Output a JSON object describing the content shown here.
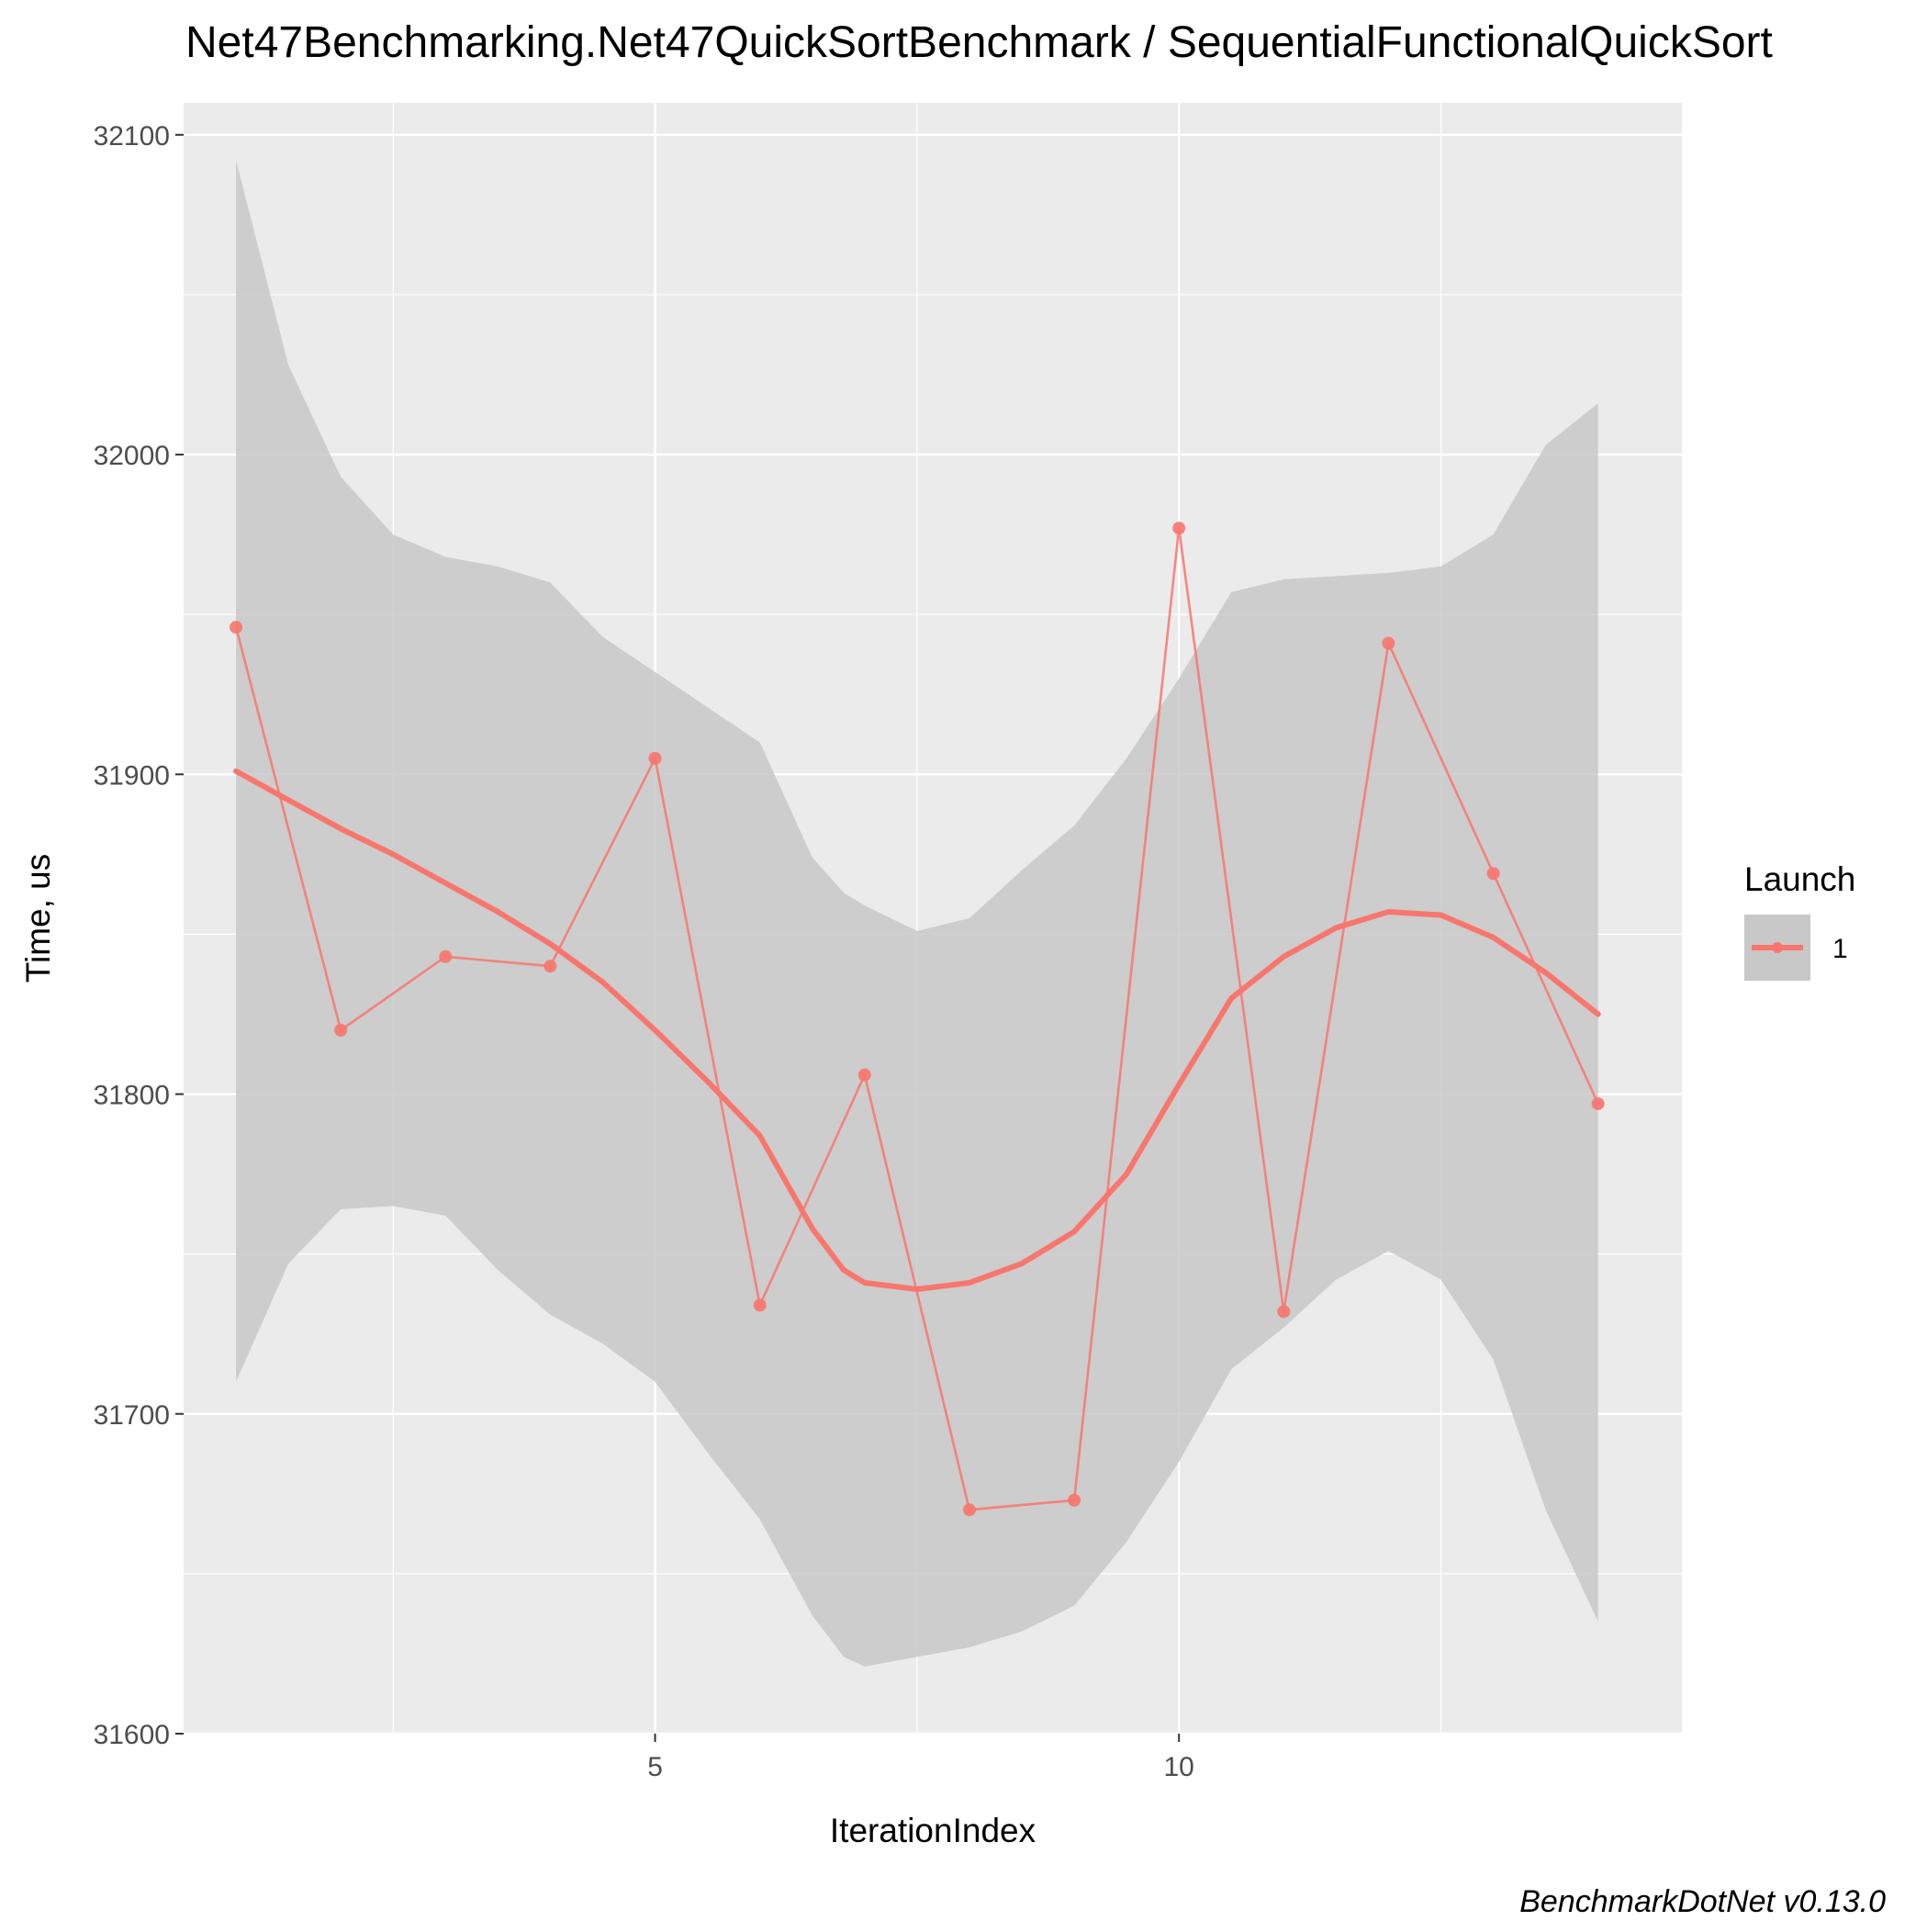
{
  "chart_data": {
    "type": "line",
    "title": "Net47Benchmarking.Net47QuickSortBenchmark / SequentialFunctionalQuickSort",
    "xlabel": "IterationIndex",
    "ylabel": "Time, us",
    "caption": "BenchmarkDotNet v0.13.0",
    "xlim": [
      0.5,
      14.8
    ],
    "ylim": [
      31600,
      32110
    ],
    "x_ticks": [
      5,
      10
    ],
    "x_tick_labels": [
      "5",
      "10"
    ],
    "y_ticks": [
      31600,
      31700,
      31800,
      31900,
      32000,
      32100
    ],
    "y_tick_labels": [
      "31600",
      "31700",
      "31800",
      "31900",
      "32000",
      "32100"
    ],
    "grid": true,
    "legend": {
      "title": "Launch",
      "position": "right",
      "entries": [
        "1"
      ]
    },
    "series": [
      {
        "name": "1",
        "color": "#f8766d",
        "x": [
          1,
          2,
          3,
          4,
          5,
          6,
          7,
          8,
          9,
          10,
          11,
          12,
          13,
          14
        ],
        "y": [
          31946,
          31820,
          31843,
          31840,
          31905,
          31734,
          31806,
          31670,
          31673,
          31977,
          31732,
          31941,
          31869,
          31797
        ]
      }
    ],
    "smooth": {
      "color": "#f8766d",
      "ribbon_color": "#c8c8c8",
      "x": [
        1,
        1.5,
        2,
        2.5,
        3,
        3.5,
        4,
        4.5,
        5,
        5.5,
        6,
        6.5,
        6.8,
        7,
        7.5,
        8,
        8.5,
        9,
        9.5,
        10,
        10.5,
        11,
        11.5,
        12,
        12.5,
        13,
        13.5,
        14
      ],
      "y": [
        31901,
        31892,
        31883,
        31875,
        31866,
        31857,
        31847,
        31835,
        31820,
        31804,
        31787,
        31758,
        31745,
        31741,
        31739,
        31741,
        31747,
        31757,
        31775,
        31803,
        31830,
        31843,
        31852,
        31857,
        31856,
        31849,
        31838,
        31825
      ],
      "upper": [
        32092,
        32028,
        31993,
        31975,
        31968,
        31965,
        31960,
        31943,
        31932,
        31921,
        31910,
        31874,
        31863,
        31859,
        31851,
        31855,
        31870,
        31884,
        31905,
        31930,
        31957,
        31961,
        31962,
        31963,
        31965,
        31975,
        32003,
        32016
      ],
      "lower": [
        31710,
        31747,
        31764,
        31765,
        31762,
        31745,
        31731,
        31722,
        31710,
        31688,
        31667,
        31637,
        31624,
        31621,
        31624,
        31627,
        31632,
        31640,
        31660,
        31685,
        31714,
        31727,
        31742,
        31751,
        31742,
        31717,
        31670,
        31635
      ]
    }
  }
}
